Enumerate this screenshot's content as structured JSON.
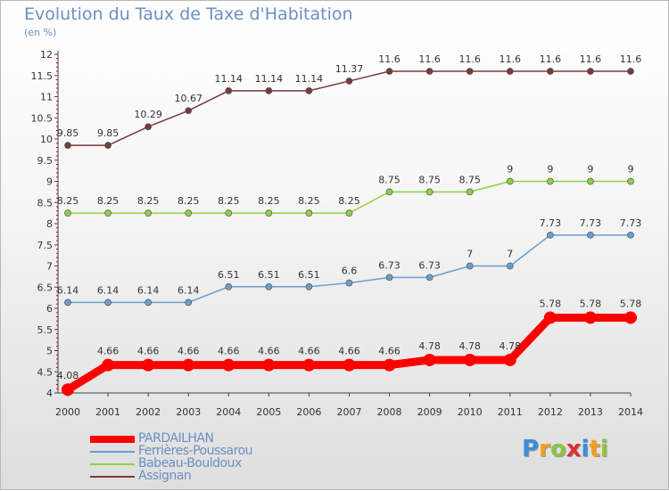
{
  "header": {
    "title": "Evolution du Taux de Taxe d'Habitation",
    "subtitle": "(en %)"
  },
  "chart_data": {
    "type": "line",
    "title": "Evolution du Taux de Taxe d'Habitation",
    "subtitle": "(en %)",
    "xlabel": "",
    "ylabel": "",
    "x": [
      "2000",
      "2001",
      "2002",
      "2003",
      "2004",
      "2005",
      "2006",
      "2007",
      "2008",
      "2009",
      "2010",
      "2011",
      "2012",
      "2013",
      "2014"
    ],
    "ylim": [
      4,
      12
    ],
    "y_ticks": [
      "4",
      "4.5",
      "5",
      "5.5",
      "6",
      "6.5",
      "7",
      "7.5",
      "8",
      "8.5",
      "9",
      "9.5",
      "10",
      "10.5",
      "11",
      "11.5",
      "12"
    ],
    "grid": false,
    "legend_position": "bottom-left",
    "series": [
      {
        "name": "PARDAILHAN",
        "color": "#ff0000",
        "emphasis": true,
        "values": [
          4.08,
          4.66,
          4.66,
          4.66,
          4.66,
          4.66,
          4.66,
          4.66,
          4.66,
          4.78,
          4.78,
          4.78,
          5.78,
          5.78,
          5.78
        ],
        "labels": [
          "4.08",
          "4.66",
          "4.66",
          "4.66",
          "4.66",
          "4.66",
          "4.66",
          "4.66",
          "4.66",
          "4.78",
          "4.78",
          "4.78",
          "5.78",
          "5.78",
          "5.78"
        ]
      },
      {
        "name": "Ferrières-Poussarou",
        "color": "#6a9ed0",
        "values": [
          6.14,
          6.14,
          6.14,
          6.14,
          6.51,
          6.51,
          6.51,
          6.6,
          6.73,
          6.73,
          7,
          7,
          7.73,
          7.73,
          7.73
        ],
        "labels": [
          "6.14",
          "6.14",
          "6.14",
          "6.14",
          "6.51",
          "6.51",
          "6.51",
          "6.6",
          "6.73",
          "6.73",
          "7",
          "7",
          "7.73",
          "7.73",
          "7.73"
        ]
      },
      {
        "name": "Babeau-Bouldoux",
        "color": "#8fd048",
        "values": [
          8.25,
          8.25,
          8.25,
          8.25,
          8.25,
          8.25,
          8.25,
          8.25,
          8.75,
          8.75,
          8.75,
          9,
          9,
          9,
          9
        ],
        "labels": [
          "8.25",
          "8.25",
          "8.25",
          "8.25",
          "8.25",
          "8.25",
          "8.25",
          "8.25",
          "8.75",
          "8.75",
          "8.75",
          "9",
          "9",
          "9",
          "9"
        ]
      },
      {
        "name": "Assignan",
        "color": "#7a3a3a",
        "values": [
          9.85,
          9.85,
          10.29,
          10.67,
          11.14,
          11.14,
          11.14,
          11.37,
          11.6,
          11.6,
          11.6,
          11.6,
          11.6,
          11.6,
          11.6
        ],
        "labels": [
          "9.85",
          "9.85",
          "10.29",
          "10.67",
          "11.14",
          "11.14",
          "11.14",
          "11.37",
          "11.6",
          "11.6",
          "11.6",
          "11.6",
          "11.6",
          "11.6",
          "11.6"
        ]
      }
    ]
  },
  "logo": {
    "text": "Proxiti",
    "letters": [
      {
        "ch": "P",
        "color": "#3a8fd8"
      },
      {
        "ch": "r",
        "color": "#f0a020"
      },
      {
        "ch": "o",
        "color": "#8cc63e"
      },
      {
        "ch": "x",
        "color": "#e03030"
      },
      {
        "ch": "i",
        "color": "#3a8fd8"
      },
      {
        "ch": "t",
        "color": "#f0a020"
      },
      {
        "ch": "i",
        "color": "#8cc63e"
      }
    ]
  }
}
